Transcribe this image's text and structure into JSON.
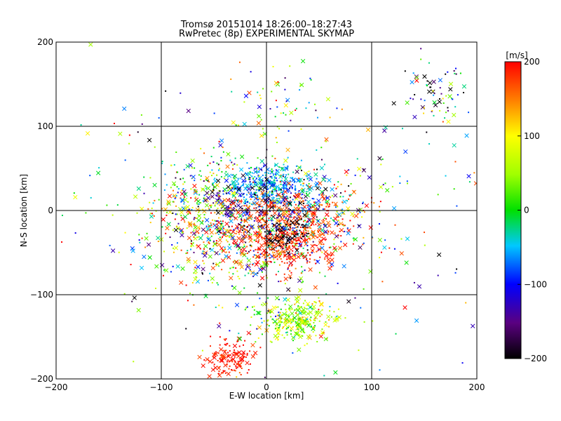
{
  "chart_data": {
    "type": "scatter",
    "title": "Tromsø 20151014  18:26:00–18:27:43",
    "subtitle": "RwPretec (8p) EXPERIMENTAL SKYMAP",
    "xlabel": "E-W location [km]",
    "ylabel": "N-S location [km]",
    "xlim": [
      -200,
      200
    ],
    "ylim": [
      -200,
      200
    ],
    "x_ticks": [
      -200,
      -100,
      0,
      100,
      200
    ],
    "y_ticks": [
      -200,
      -100,
      0,
      100,
      200
    ],
    "x_tick_labels": [
      "−200",
      "−100",
      "0",
      "100",
      "200"
    ],
    "y_tick_labels": [
      "−200",
      "−100",
      "0",
      "100",
      "200"
    ],
    "grid": true,
    "colorbar": {
      "label": "[m/s]",
      "range": [
        -200,
        200
      ],
      "ticks": [
        200,
        100,
        0,
        -100,
        -200
      ],
      "tick_labels": [
        "200",
        "100",
        "0",
        "−100",
        "−200"
      ]
    },
    "marker_types": [
      "dot",
      "x"
    ],
    "clusters": [
      {
        "x": -20,
        "y": -30,
        "sx": 45,
        "sy": 40,
        "vel": 30,
        "vsd": 120,
        "n": 550
      },
      {
        "x": 5,
        "y": 30,
        "sx": 22,
        "sy": 13,
        "vel": -60,
        "vsd": 25,
        "n": 340
      },
      {
        "x": -10,
        "y": 0,
        "sx": 28,
        "sy": 22,
        "vel": -170,
        "vsd": 35,
        "n": 160
      },
      {
        "x": 30,
        "y": -15,
        "sx": 32,
        "sy": 22,
        "vel": 175,
        "vsd": 25,
        "n": 380
      },
      {
        "x": -55,
        "y": -15,
        "sx": 28,
        "sy": 22,
        "vel": 170,
        "vsd": 35,
        "n": 110
      },
      {
        "x": 15,
        "y": -45,
        "sx": 20,
        "sy": 14,
        "vel": 185,
        "vsd": 20,
        "n": 160
      },
      {
        "x": 20,
        "y": -30,
        "sx": 12,
        "sy": 10,
        "vel": -195,
        "vsd": 10,
        "n": 70
      },
      {
        "x": 28,
        "y": -130,
        "sx": 17,
        "sy": 12,
        "vel": 60,
        "vsd": 50,
        "n": 280
      },
      {
        "x": -35,
        "y": -175,
        "sx": 12,
        "sy": 12,
        "vel": 190,
        "vsd": 15,
        "n": 140
      },
      {
        "x": -60,
        "y": 25,
        "sx": 22,
        "sy": 22,
        "vel": -10,
        "vsd": 90,
        "n": 130
      },
      {
        "x": 45,
        "y": 5,
        "sx": 35,
        "sy": 25,
        "vel": -90,
        "vsd": 60,
        "n": 110
      },
      {
        "x": 160,
        "y": 140,
        "sx": 18,
        "sy": 18,
        "vel": -100,
        "vsd": 120,
        "n": 70
      },
      {
        "x": 20,
        "y": 130,
        "sx": 25,
        "sy": 25,
        "vel": 40,
        "vsd": 120,
        "n": 50
      },
      {
        "x": 0,
        "y": 0,
        "sx": 110,
        "sy": 90,
        "vel": 0,
        "vsd": 120,
        "n": 320
      }
    ]
  }
}
